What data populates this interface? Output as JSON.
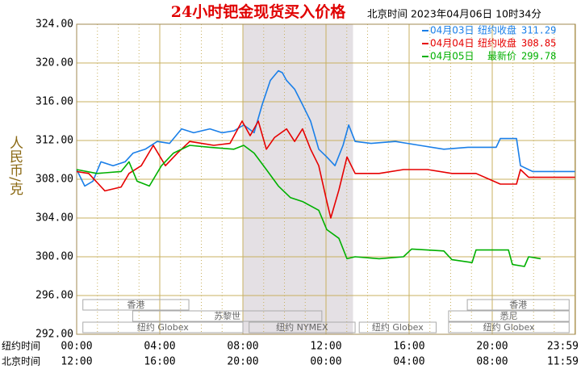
{
  "chart_data": {
    "type": "line",
    "title": "24小时钯金现货买入价格",
    "subtitle": "北京时间 2023年04月06日 10时34分",
    "y_label": "人民币/克",
    "ylim": [
      292,
      324
    ],
    "yticks": [
      {
        "value": 292,
        "label": "292.00"
      },
      {
        "value": 296,
        "label": "296.00"
      },
      {
        "value": 300,
        "label": "300.00"
      },
      {
        "value": 304,
        "label": "304.00"
      },
      {
        "value": 308,
        "label": "308.00"
      },
      {
        "value": 312,
        "label": "312.00"
      },
      {
        "value": 316,
        "label": "316.00"
      },
      {
        "value": 320,
        "label": "320.00"
      },
      {
        "value": 324,
        "label": "324.00"
      }
    ],
    "xlim": [
      0,
      24
    ],
    "x_row_label": "纽约时间",
    "xticks": [
      {
        "value": 0,
        "label": "00:00"
      },
      {
        "value": 4,
        "label": "04:00"
      },
      {
        "value": 8,
        "label": "08:00"
      },
      {
        "value": 12,
        "label": "12:00"
      },
      {
        "value": 16,
        "label": "16:00"
      },
      {
        "value": 20,
        "label": "20:00"
      },
      {
        "value": 23.98,
        "label": "23:59"
      }
    ],
    "x2_row_label": "北京时间",
    "x2tick_labels": [
      "12:00",
      "16:00",
      "20:00",
      "00:00",
      "04:00",
      "08:00",
      "11:59"
    ],
    "grid": true,
    "shaded_span": [
      8,
      13.3
    ],
    "session_rows": [
      [
        {
          "name": "香港",
          "start": 0.3,
          "end": 5.4
        },
        {
          "name": "香港",
          "start": 18.8,
          "end": 23.7
        }
      ],
      [
        {
          "name": "苏黎世",
          "start": 2.7,
          "end": 11.8
        },
        {
          "name": "悉尼",
          "start": 17.9,
          "end": 23.7
        }
      ],
      [
        {
          "name": "纽约 Globex",
          "start": 0.3,
          "end": 8.0
        },
        {
          "name": "纽约 NYMEX",
          "start": 8.3,
          "end": 13.4
        },
        {
          "name": "纽约 Globex",
          "start": 13.6,
          "end": 17.3
        },
        {
          "name": "纽约 Globex",
          "start": 17.9,
          "end": 23.7
        }
      ]
    ],
    "series": [
      {
        "name": "04月03日",
        "legend_note": "纽约收盘",
        "legend_value": 311.29,
        "color": "#1a7fe8",
        "x": [
          0,
          0.39,
          0.78,
          1.17,
          1.75,
          2.33,
          2.72,
          3.3,
          3.88,
          4.47,
          5.05,
          5.63,
          6.41,
          6.99,
          7.57,
          8.04,
          8.54,
          8.93,
          9.32,
          9.71,
          9.9,
          10.1,
          10.49,
          10.87,
          11.26,
          11.65,
          12.04,
          12.43,
          12.82,
          13.09,
          13.4,
          14.17,
          15.34,
          16.5,
          17.67,
          18.83,
          20.19,
          20.39,
          21.17,
          21.36,
          21.94,
          23.98
        ],
        "values": [
          309.0,
          307.3,
          307.8,
          309.8,
          309.4,
          309.8,
          310.7,
          311.1,
          311.9,
          311.7,
          313.2,
          312.8,
          313.2,
          312.8,
          313.0,
          313.6,
          312.8,
          315.7,
          318.2,
          319.2,
          319.0,
          318.2,
          317.3,
          315.7,
          314.0,
          311.1,
          310.3,
          309.4,
          311.5,
          313.6,
          311.9,
          311.7,
          311.9,
          311.5,
          311.1,
          311.3,
          311.3,
          312.2,
          312.2,
          309.4,
          308.8,
          308.8
        ]
      },
      {
        "name": "04月04日",
        "legend_note": "纽约收盘",
        "legend_value": 308.85,
        "color": "#e60000",
        "x": [
          0,
          0.58,
          1.36,
          2.14,
          2.52,
          3.11,
          3.69,
          4.27,
          4.85,
          5.44,
          6.02,
          6.6,
          7.38,
          7.96,
          8.35,
          8.74,
          9.13,
          9.52,
          10.1,
          10.49,
          10.87,
          11.26,
          11.65,
          12.04,
          12.23,
          12.62,
          13.01,
          13.4,
          14.56,
          15.73,
          16.89,
          18.06,
          19.22,
          20.39,
          21.17,
          21.36,
          21.75,
          23.98
        ],
        "values": [
          308.8,
          308.6,
          306.8,
          307.2,
          308.6,
          309.4,
          311.5,
          309.4,
          310.7,
          311.9,
          311.7,
          311.5,
          311.7,
          314.0,
          312.5,
          314.0,
          311.1,
          312.3,
          313.2,
          311.9,
          313.2,
          311.1,
          309.4,
          305.7,
          304.0,
          306.9,
          310.3,
          308.6,
          308.6,
          309.0,
          309.0,
          308.6,
          308.6,
          307.5,
          307.5,
          309.0,
          308.2,
          308.2
        ]
      },
      {
        "name": "04月05日",
        "legend_note": "最新价",
        "legend_value": 299.78,
        "color": "#00b000",
        "x": [
          0,
          0.97,
          2.14,
          2.52,
          2.91,
          3.5,
          4.08,
          4.66,
          5.44,
          6.41,
          7.57,
          8.04,
          8.54,
          9.13,
          9.71,
          10.29,
          10.87,
          11.65,
          12.04,
          12.62,
          13.01,
          13.4,
          14.56,
          15.73,
          16.12,
          17.67,
          18.06,
          19.03,
          19.22,
          20.78,
          20.97,
          21.55,
          21.75,
          22.33
        ],
        "values": [
          309.0,
          308.6,
          308.8,
          309.8,
          307.8,
          307.3,
          309.4,
          310.7,
          311.5,
          311.3,
          311.1,
          311.5,
          310.7,
          309.0,
          307.3,
          306.1,
          305.7,
          304.8,
          302.8,
          301.9,
          299.8,
          300.0,
          299.8,
          300.0,
          300.8,
          300.6,
          299.7,
          299.4,
          300.7,
          300.7,
          299.2,
          299.0,
          300.0,
          299.8
        ]
      }
    ]
  }
}
